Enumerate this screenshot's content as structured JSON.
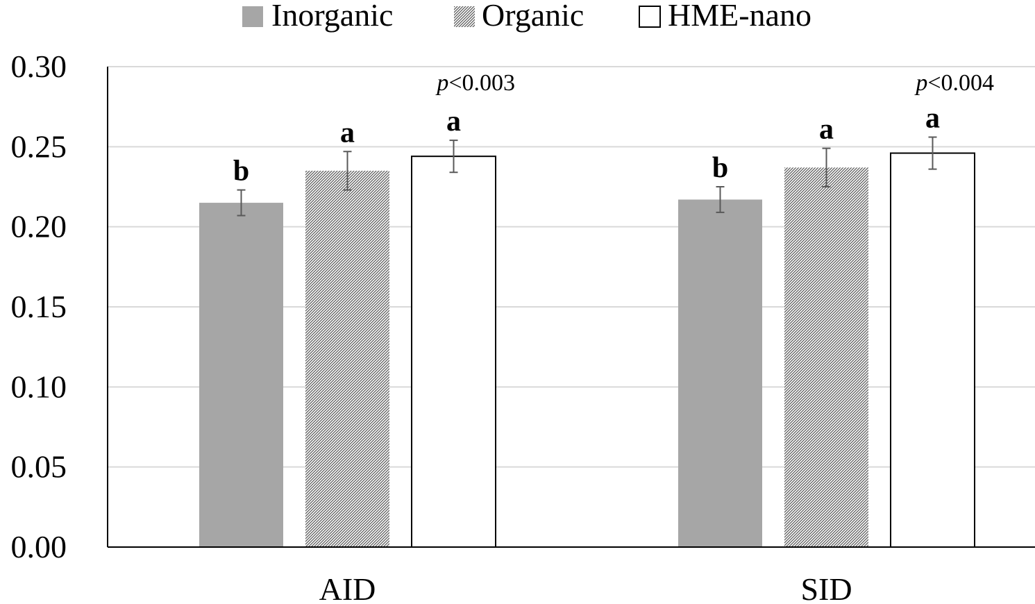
{
  "chart_data": {
    "type": "bar",
    "categories": [
      "AID",
      "SID"
    ],
    "series": [
      {
        "name": "Inorganic",
        "values": [
          0.215,
          0.217
        ],
        "errors": [
          0.008,
          0.008
        ],
        "letters": [
          "b",
          "b"
        ],
        "fill": "#a6a6a6",
        "pattern": "solid"
      },
      {
        "name": "Organic",
        "values": [
          0.235,
          0.237
        ],
        "errors": [
          0.012,
          0.012
        ],
        "letters": [
          "a",
          "a"
        ],
        "fill": "#ffffff",
        "pattern": "hatch"
      },
      {
        "name": "HME-nano",
        "values": [
          0.244,
          0.246
        ],
        "errors": [
          0.01,
          0.01
        ],
        "letters": [
          "a",
          "a"
        ],
        "fill": "#ffffff",
        "pattern": "outline"
      }
    ],
    "p_values": [
      {
        "prefix": "p",
        "text": "<0.003"
      },
      {
        "prefix": "p",
        "text": "<0.004"
      }
    ],
    "yticks": [
      "0.00",
      "0.05",
      "0.10",
      "0.15",
      "0.20",
      "0.25",
      "0.30"
    ],
    "ylim": [
      0,
      0.3
    ],
    "grid": true,
    "legend_position": "top"
  }
}
